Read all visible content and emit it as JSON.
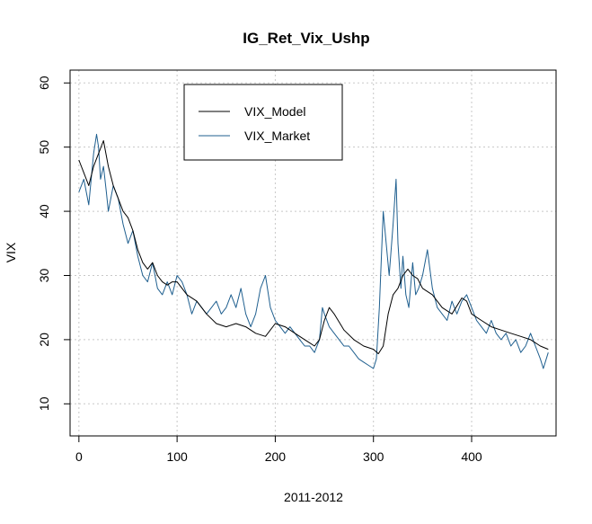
{
  "chart_data": {
    "type": "line",
    "title": "IG_Ret_Vix_Ushp",
    "xlabel": "2011-2012",
    "ylabel": "VIX",
    "xlim": [
      -9,
      486
    ],
    "ylim": [
      5,
      62
    ],
    "xticks": [
      0,
      100,
      200,
      300,
      400
    ],
    "yticks": [
      10,
      20,
      30,
      40,
      50,
      60
    ],
    "grid": true,
    "legend_position": "top-center",
    "series": [
      {
        "name": "VIX_Model",
        "color": "#000000",
        "x": [
          0,
          5,
          10,
          15,
          20,
          25,
          30,
          35,
          40,
          45,
          50,
          55,
          60,
          65,
          70,
          75,
          80,
          85,
          90,
          95,
          100,
          110,
          120,
          130,
          140,
          150,
          160,
          170,
          180,
          190,
          200,
          210,
          220,
          230,
          240,
          245,
          250,
          255,
          260,
          270,
          280,
          290,
          300,
          305,
          310,
          315,
          320,
          325,
          330,
          335,
          340,
          345,
          350,
          360,
          370,
          380,
          390,
          395,
          400,
          410,
          420,
          430,
          440,
          450,
          460,
          470,
          478
        ],
        "values": [
          48,
          46,
          44,
          47,
          49,
          51,
          47,
          44,
          42,
          40,
          39,
          37,
          34,
          32,
          31,
          32,
          30,
          29,
          28.5,
          29,
          29,
          27,
          26,
          24,
          22.5,
          22,
          22.5,
          22,
          21,
          20.5,
          22.5,
          22,
          21,
          20,
          19,
          20,
          23,
          25,
          24,
          21.5,
          20,
          19,
          18.5,
          17.8,
          19,
          24,
          27,
          28,
          30,
          31,
          30,
          29.5,
          28,
          27,
          25,
          24,
          26.5,
          26,
          24,
          23,
          22,
          21.5,
          21,
          20.5,
          20,
          19,
          18.5
        ]
      },
      {
        "name": "VIX_Market",
        "color": "#1f5f8f",
        "x": [
          0,
          5,
          10,
          15,
          18,
          20,
          22,
          25,
          28,
          30,
          35,
          40,
          45,
          50,
          55,
          60,
          65,
          70,
          75,
          80,
          85,
          90,
          95,
          100,
          105,
          110,
          115,
          120,
          125,
          130,
          135,
          140,
          145,
          150,
          155,
          160,
          165,
          170,
          175,
          180,
          185,
          190,
          195,
          200,
          205,
          210,
          215,
          220,
          225,
          230,
          235,
          240,
          245,
          248,
          250,
          255,
          260,
          265,
          270,
          275,
          280,
          285,
          290,
          295,
          300,
          303,
          306,
          310,
          313,
          316,
          320,
          323,
          325,
          328,
          330,
          333,
          336,
          340,
          343,
          346,
          350,
          355,
          360,
          365,
          370,
          375,
          380,
          385,
          390,
          395,
          400,
          405,
          410,
          415,
          420,
          425,
          430,
          435,
          440,
          445,
          450,
          455,
          460,
          465,
          470,
          473,
          476,
          478
        ],
        "values": [
          43,
          45,
          41,
          49,
          52,
          50,
          45,
          47,
          43,
          40,
          44,
          42,
          38,
          35,
          37,
          33,
          30,
          29,
          32,
          28,
          27,
          29,
          27,
          30,
          29,
          27,
          24,
          26,
          25,
          24,
          25,
          26,
          24,
          25,
          27,
          25,
          28,
          24,
          22,
          24,
          28,
          30,
          25,
          23,
          22,
          21,
          22,
          21,
          20,
          19,
          19,
          18,
          20,
          25,
          24,
          22,
          21,
          20,
          19,
          19,
          18,
          17,
          16.5,
          16,
          15.5,
          17,
          25,
          40,
          35,
          30,
          38,
          45,
          35,
          28,
          33,
          27,
          25,
          32,
          27,
          28,
          30,
          34,
          28,
          25,
          24,
          23,
          26,
          24,
          26,
          27,
          25,
          23,
          22,
          21,
          23,
          21,
          20,
          21,
          19,
          20,
          18,
          19,
          21,
          19,
          17,
          15.5,
          17,
          18
        ]
      }
    ]
  }
}
